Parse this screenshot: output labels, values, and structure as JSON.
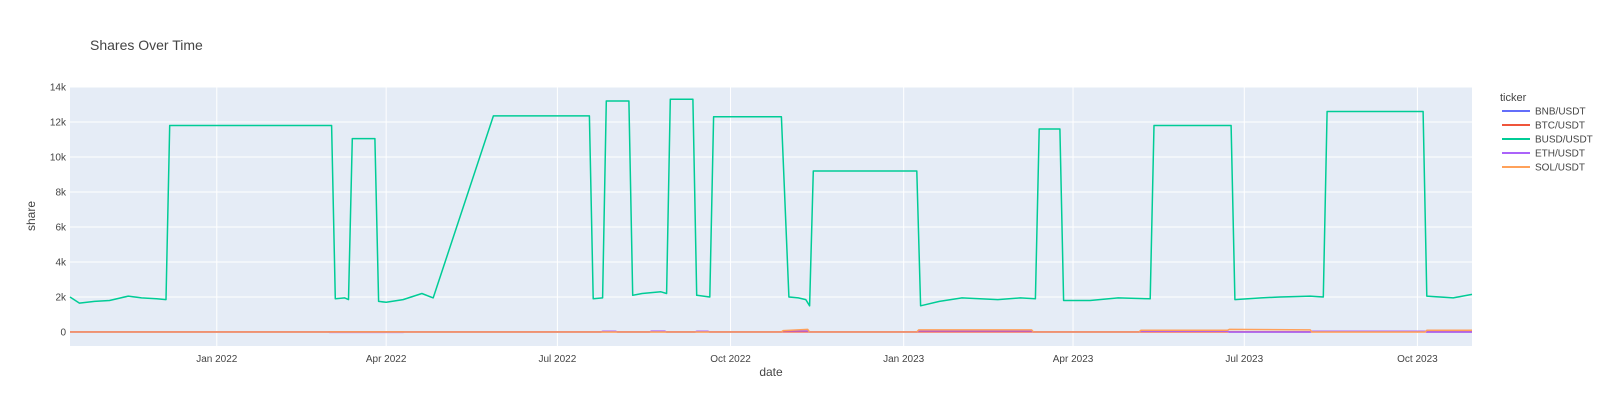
{
  "chart_data": {
    "type": "line",
    "title": "Shares Over Time",
    "xlabel": "date",
    "ylabel": "share",
    "x_ticks": [
      {
        "label": "Jan 2022",
        "date": "2022-01-01"
      },
      {
        "label": "Apr 2022",
        "date": "2022-04-01"
      },
      {
        "label": "Jul 2022",
        "date": "2022-07-01"
      },
      {
        "label": "Oct 2022",
        "date": "2022-10-01"
      },
      {
        "label": "Jan 2023",
        "date": "2023-01-01"
      },
      {
        "label": "Apr 2023",
        "date": "2023-04-01"
      },
      {
        "label": "Jul 2023",
        "date": "2023-07-01"
      },
      {
        "label": "Oct 2023",
        "date": "2023-10-01"
      }
    ],
    "y_ticks": [
      {
        "label": "0",
        "value": 0
      },
      {
        "label": "2k",
        "value": 2000
      },
      {
        "label": "4k",
        "value": 4000
      },
      {
        "label": "6k",
        "value": 6000
      },
      {
        "label": "8k",
        "value": 8000
      },
      {
        "label": "10k",
        "value": 10000
      },
      {
        "label": "12k",
        "value": 12000
      },
      {
        "label": "14k",
        "value": 14000
      }
    ],
    "xlim": [
      "2021-10-15",
      "2023-10-30"
    ],
    "ylim": [
      -800,
      14000
    ],
    "grid": true,
    "legend_title": "ticker",
    "legend_position": "right",
    "series": [
      {
        "name": "BNB/USDT",
        "color": "#636efa",
        "x": [
          "2021-10-15",
          "2022-07-24",
          "2022-07-25",
          "2022-08-01",
          "2022-08-02",
          "2022-08-19",
          "2022-08-20",
          "2022-08-27",
          "2022-08-28",
          "2022-09-12",
          "2022-09-13",
          "2022-09-19",
          "2022-09-20",
          "2022-10-28",
          "2022-10-29",
          "2022-11-11",
          "2022-11-12",
          "2023-01-08",
          "2023-01-09",
          "2023-03-10",
          "2023-03-11",
          "2023-05-06",
          "2023-05-07",
          "2023-06-22",
          "2023-06-23",
          "2023-08-05",
          "2023-08-06",
          "2023-10-05",
          "2023-10-06",
          "2023-10-30"
        ],
        "y": [
          0,
          0,
          20,
          20,
          0,
          0,
          30,
          30,
          0,
          0,
          20,
          20,
          0,
          0,
          25,
          25,
          0,
          0,
          20,
          20,
          0,
          0,
          20,
          20,
          0,
          0,
          25,
          25,
          0,
          0
        ]
      },
      {
        "name": "BTC/USDT",
        "color": "#ef553b",
        "x": [
          "2021-10-15",
          "2023-10-30"
        ],
        "y": [
          5,
          5
        ]
      },
      {
        "name": "BUSD/USDT",
        "color": "#00cc96",
        "x": [
          "2021-10-15",
          "2021-10-20",
          "2021-10-28",
          "2021-11-05",
          "2021-11-15",
          "2021-11-22",
          "2021-11-30",
          "2021-12-05",
          "2021-12-07",
          "2022-03-03",
          "2022-03-05",
          "2022-03-10",
          "2022-03-12",
          "2022-03-14",
          "2022-03-26",
          "2022-03-28",
          "2022-04-01",
          "2022-04-10",
          "2022-04-20",
          "2022-04-26",
          "2022-05-28",
          "2022-06-28",
          "2022-07-18",
          "2022-07-20",
          "2022-07-25",
          "2022-07-27",
          "2022-08-08",
          "2022-08-10",
          "2022-08-15",
          "2022-08-25",
          "2022-08-28",
          "2022-08-30",
          "2022-09-11",
          "2022-09-13",
          "2022-09-20",
          "2022-09-22",
          "2022-10-28",
          "2022-11-01",
          "2022-11-06",
          "2022-11-10",
          "2022-11-12",
          "2022-11-14",
          "2023-01-08",
          "2023-01-10",
          "2023-01-20",
          "2023-02-01",
          "2023-02-20",
          "2023-03-04",
          "2023-03-12",
          "2023-03-14",
          "2023-03-25",
          "2023-03-27",
          "2023-04-10",
          "2023-04-25",
          "2023-05-12",
          "2023-05-14",
          "2023-06-24",
          "2023-06-26",
          "2023-07-10",
          "2023-07-20",
          "2023-08-05",
          "2023-08-12",
          "2023-08-14",
          "2023-10-04",
          "2023-10-06",
          "2023-10-20",
          "2023-10-30"
        ],
        "y": [
          2000,
          1650,
          1750,
          1800,
          2050,
          1950,
          1900,
          1850,
          11800,
          11800,
          1900,
          1950,
          1850,
          11050,
          11050,
          1750,
          1700,
          1850,
          2200,
          1950,
          12350,
          12350,
          12350,
          1900,
          1950,
          13200,
          13200,
          2100,
          2200,
          2300,
          2200,
          13300,
          13300,
          2100,
          2000,
          12300,
          12300,
          2000,
          1950,
          1850,
          1500,
          9200,
          9200,
          1500,
          1750,
          1950,
          1850,
          1950,
          1900,
          11600,
          11600,
          1800,
          1800,
          1950,
          1900,
          11800,
          11800,
          1850,
          1950,
          2000,
          2050,
          2000,
          12600,
          12600,
          2050,
          1950,
          2150
        ]
      },
      {
        "name": "ETH/USDT",
        "color": "#ab63fa",
        "x": [
          "2021-10-15",
          "2022-03-01",
          "2022-03-02",
          "2022-04-10",
          "2022-04-11",
          "2022-07-24",
          "2022-07-25",
          "2022-08-01",
          "2022-08-02",
          "2022-08-19",
          "2022-08-20",
          "2022-08-27",
          "2022-08-28",
          "2022-09-12",
          "2022-09-13",
          "2022-09-19",
          "2022-09-20",
          "2022-10-28",
          "2022-10-29",
          "2022-11-11",
          "2022-11-12",
          "2023-01-08",
          "2023-01-09",
          "2023-03-10",
          "2023-03-11",
          "2023-05-06",
          "2023-05-07",
          "2023-06-22",
          "2023-06-23",
          "2023-08-05",
          "2023-08-06",
          "2023-10-05",
          "2023-10-06",
          "2023-10-30"
        ],
        "y": [
          0,
          0,
          -20,
          -20,
          0,
          0,
          40,
          40,
          0,
          0,
          50,
          50,
          0,
          0,
          40,
          40,
          0,
          0,
          60,
          60,
          0,
          0,
          60,
          60,
          0,
          0,
          50,
          50,
          0,
          0,
          40,
          40,
          0,
          0
        ]
      },
      {
        "name": "SOL/USDT",
        "color": "#ffa15a",
        "x": [
          "2021-10-15",
          "2022-10-28",
          "2022-10-29",
          "2022-11-11",
          "2022-11-12",
          "2023-01-08",
          "2023-01-09",
          "2023-03-10",
          "2023-03-11",
          "2023-05-06",
          "2023-05-07",
          "2023-06-22",
          "2023-06-23",
          "2023-08-05",
          "2023-08-06",
          "2023-10-05",
          "2023-10-06",
          "2023-10-30"
        ],
        "y": [
          0,
          0,
          80,
          150,
          0,
          0,
          120,
          120,
          0,
          0,
          100,
          100,
          150,
          120,
          0,
          0,
          100,
          100
        ]
      }
    ]
  }
}
